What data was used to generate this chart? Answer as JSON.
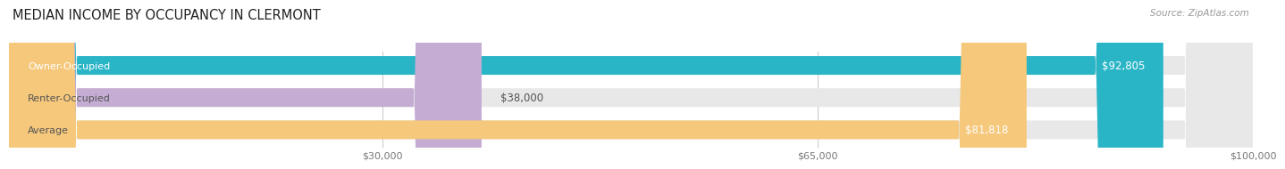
{
  "title": "MEDIAN INCOME BY OCCUPANCY IN CLERMONT",
  "source": "Source: ZipAtlas.com",
  "categories": [
    "Owner-Occupied",
    "Renter-Occupied",
    "Average"
  ],
  "values": [
    92805,
    38000,
    81818
  ],
  "labels": [
    "$92,805",
    "$38,000",
    "$81,818"
  ],
  "bar_colors": [
    "#2ab5c7",
    "#c5acd3",
    "#f5c87c"
  ],
  "bar_bg_color": "#e8e8e8",
  "xlim_max": 100000,
  "xticks": [
    30000,
    65000,
    100000
  ],
  "xtick_labels": [
    "$30,000",
    "$65,000",
    "$100,000"
  ],
  "title_fontsize": 10.5,
  "source_fontsize": 7.5,
  "bar_label_fontsize": 8.5,
  "category_fontsize": 8,
  "xtick_fontsize": 8,
  "bar_height": 0.58,
  "rounding_size": 5500
}
